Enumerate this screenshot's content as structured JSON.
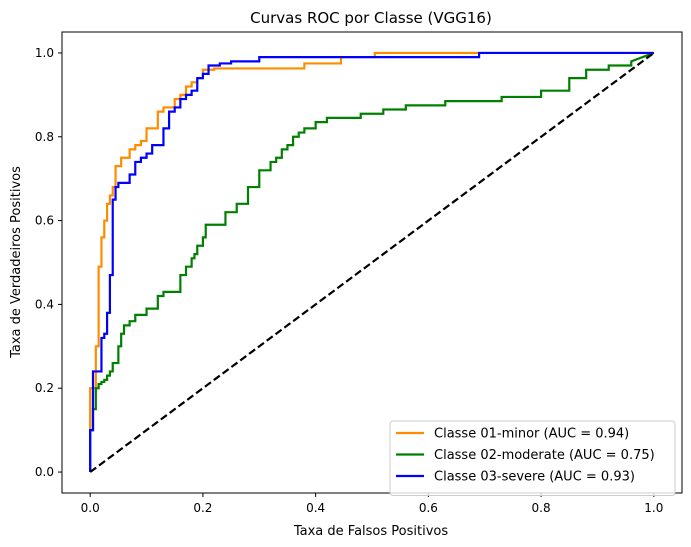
{
  "chart_data": {
    "type": "line",
    "title": "Curvas ROC por Classe (VGG16)",
    "xlabel": "Taxa de Falsos Positivos",
    "ylabel": "Taxa de Verdadeiros Positivos",
    "xlim": [
      -0.05,
      1.05
    ],
    "ylim": [
      -0.05,
      1.05
    ],
    "x_ticks": [
      "0.0",
      "0.2",
      "0.4",
      "0.6",
      "0.8",
      "1.0"
    ],
    "y_ticks": [
      "0.0",
      "0.2",
      "0.4",
      "0.6",
      "0.8",
      "1.0"
    ],
    "grid": false,
    "legend_position": "lower-right",
    "series": [
      {
        "name": "Classe 01-minor (AUC = 0.94)",
        "color": "#ff8c00",
        "x": [
          0.0,
          0.0,
          0.01,
          0.01,
          0.015,
          0.015,
          0.02,
          0.02,
          0.025,
          0.025,
          0.03,
          0.03,
          0.035,
          0.035,
          0.04,
          0.04,
          0.045,
          0.045,
          0.055,
          0.055,
          0.07,
          0.07,
          0.08,
          0.08,
          0.09,
          0.09,
          0.1,
          0.1,
          0.12,
          0.12,
          0.13,
          0.13,
          0.15,
          0.15,
          0.16,
          0.16,
          0.17,
          0.17,
          0.18,
          0.18,
          0.19,
          0.19,
          0.2,
          0.2,
          0.22,
          0.22,
          0.38,
          0.38,
          0.445,
          0.445,
          0.505,
          0.505,
          1.0
        ],
        "y": [
          0.0,
          0.2,
          0.2,
          0.3,
          0.3,
          0.49,
          0.49,
          0.56,
          0.56,
          0.6,
          0.6,
          0.64,
          0.64,
          0.66,
          0.66,
          0.68,
          0.68,
          0.73,
          0.73,
          0.75,
          0.75,
          0.77,
          0.77,
          0.78,
          0.78,
          0.79,
          0.79,
          0.82,
          0.82,
          0.86,
          0.86,
          0.87,
          0.87,
          0.89,
          0.89,
          0.9,
          0.9,
          0.92,
          0.92,
          0.93,
          0.93,
          0.94,
          0.94,
          0.96,
          0.96,
          0.963,
          0.963,
          0.975,
          0.975,
          0.99,
          0.99,
          1.0,
          1.0
        ]
      },
      {
        "name": "Classe 02-moderate (AUC = 0.75)",
        "color": "#008000",
        "x": [
          0.0,
          0.0,
          0.005,
          0.005,
          0.01,
          0.01,
          0.015,
          0.015,
          0.02,
          0.02,
          0.025,
          0.025,
          0.03,
          0.03,
          0.035,
          0.035,
          0.04,
          0.04,
          0.05,
          0.05,
          0.055,
          0.055,
          0.06,
          0.06,
          0.07,
          0.07,
          0.08,
          0.08,
          0.1,
          0.1,
          0.12,
          0.12,
          0.13,
          0.13,
          0.16,
          0.16,
          0.17,
          0.17,
          0.18,
          0.18,
          0.185,
          0.185,
          0.19,
          0.19,
          0.2,
          0.2,
          0.205,
          0.205,
          0.24,
          0.24,
          0.26,
          0.26,
          0.28,
          0.28,
          0.3,
          0.3,
          0.32,
          0.32,
          0.33,
          0.33,
          0.34,
          0.34,
          0.35,
          0.35,
          0.36,
          0.36,
          0.37,
          0.37,
          0.38,
          0.38,
          0.4,
          0.4,
          0.42,
          0.42,
          0.48,
          0.48,
          0.52,
          0.52,
          0.56,
          0.56,
          0.63,
          0.63,
          0.73,
          0.73,
          0.8,
          0.8,
          0.85,
          0.85,
          0.88,
          0.88,
          0.92,
          0.92,
          0.96,
          0.96,
          1.0
        ],
        "y": [
          0.0,
          0.1,
          0.1,
          0.15,
          0.15,
          0.2,
          0.2,
          0.21,
          0.21,
          0.215,
          0.215,
          0.22,
          0.22,
          0.23,
          0.23,
          0.24,
          0.24,
          0.26,
          0.26,
          0.3,
          0.3,
          0.33,
          0.33,
          0.35,
          0.35,
          0.36,
          0.36,
          0.375,
          0.375,
          0.39,
          0.39,
          0.42,
          0.42,
          0.43,
          0.43,
          0.47,
          0.47,
          0.49,
          0.49,
          0.51,
          0.51,
          0.52,
          0.52,
          0.54,
          0.54,
          0.56,
          0.56,
          0.59,
          0.59,
          0.62,
          0.62,
          0.64,
          0.64,
          0.68,
          0.68,
          0.72,
          0.72,
          0.74,
          0.74,
          0.75,
          0.75,
          0.77,
          0.77,
          0.78,
          0.78,
          0.8,
          0.8,
          0.81,
          0.81,
          0.82,
          0.82,
          0.835,
          0.835,
          0.845,
          0.845,
          0.855,
          0.855,
          0.865,
          0.865,
          0.875,
          0.875,
          0.885,
          0.885,
          0.895,
          0.895,
          0.91,
          0.91,
          0.94,
          0.94,
          0.96,
          0.96,
          0.97,
          0.97,
          0.98,
          1.0
        ]
      },
      {
        "name": "Classe 03-severe (AUC = 0.93)",
        "color": "#0000ff",
        "x": [
          0.0,
          0.0,
          0.005,
          0.005,
          0.02,
          0.02,
          0.025,
          0.025,
          0.03,
          0.03,
          0.035,
          0.035,
          0.04,
          0.04,
          0.045,
          0.045,
          0.05,
          0.05,
          0.07,
          0.07,
          0.08,
          0.08,
          0.09,
          0.09,
          0.1,
          0.1,
          0.11,
          0.11,
          0.13,
          0.13,
          0.14,
          0.14,
          0.15,
          0.15,
          0.16,
          0.16,
          0.17,
          0.17,
          0.18,
          0.18,
          0.19,
          0.19,
          0.2,
          0.2,
          0.21,
          0.21,
          0.23,
          0.23,
          0.25,
          0.25,
          0.3,
          0.3,
          0.69,
          0.69,
          1.0
        ],
        "y": [
          0.0,
          0.1,
          0.1,
          0.24,
          0.24,
          0.32,
          0.32,
          0.33,
          0.33,
          0.38,
          0.38,
          0.47,
          0.47,
          0.65,
          0.65,
          0.68,
          0.68,
          0.69,
          0.69,
          0.71,
          0.71,
          0.74,
          0.74,
          0.75,
          0.75,
          0.76,
          0.76,
          0.78,
          0.78,
          0.82,
          0.82,
          0.86,
          0.86,
          0.87,
          0.87,
          0.89,
          0.89,
          0.9,
          0.9,
          0.91,
          0.91,
          0.94,
          0.94,
          0.95,
          0.95,
          0.97,
          0.97,
          0.975,
          0.975,
          0.98,
          0.98,
          0.99,
          0.99,
          1.0,
          1.0
        ]
      },
      {
        "name": "",
        "color": "#000000",
        "dashed": true,
        "x": [
          0.0,
          1.0
        ],
        "y": [
          0.0,
          1.0
        ]
      }
    ]
  }
}
